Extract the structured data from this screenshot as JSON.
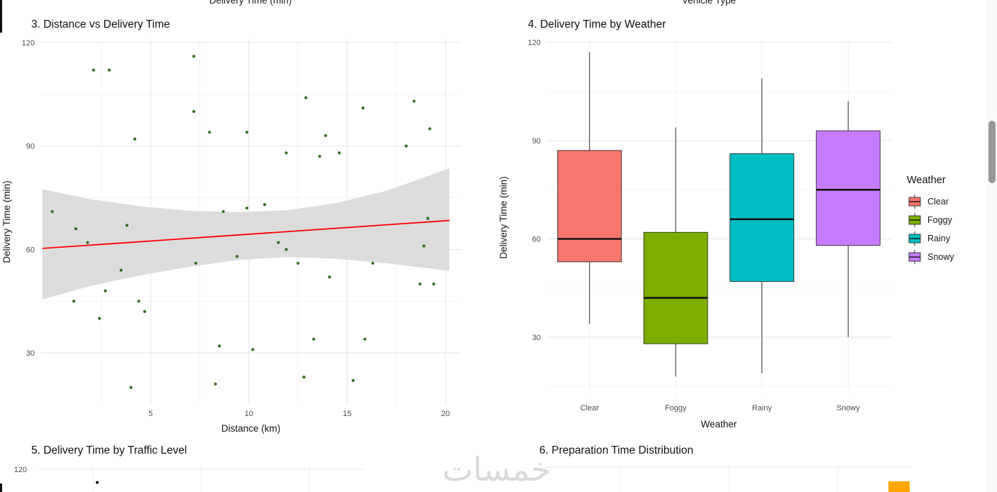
{
  "page": {
    "cutoff_axis_labels": {
      "left": "Delivery Time (min)",
      "right": "Vehicle Type"
    },
    "watermark_text": "خمسات"
  },
  "chart_data": [
    {
      "type": "scatter",
      "title": "3. Distance vs Delivery Time",
      "xlabel": "Distance (km)",
      "ylabel": "Delivery Time (min)",
      "xlim": [
        -0.6,
        20.8
      ],
      "ylim": [
        15,
        121
      ],
      "xticks": [
        5,
        10,
        15,
        20
      ],
      "yticks": [
        30,
        60,
        90,
        120
      ],
      "xticks_minor": [
        2.5,
        7.5,
        12.5,
        17.5
      ],
      "yticks_minor": [
        45,
        75,
        105
      ],
      "grid": true,
      "point_color": "#336b1f",
      "points": [
        [
          0.0,
          71
        ],
        [
          1.1,
          45
        ],
        [
          1.2,
          66
        ],
        [
          1.8,
          62
        ],
        [
          2.1,
          112
        ],
        [
          2.4,
          40
        ],
        [
          2.7,
          48
        ],
        [
          2.9,
          112
        ],
        [
          3.5,
          54
        ],
        [
          3.8,
          67
        ],
        [
          4.0,
          20
        ],
        [
          4.2,
          92
        ],
        [
          4.4,
          45
        ],
        [
          4.7,
          42
        ],
        [
          7.2,
          116
        ],
        [
          7.2,
          100
        ],
        [
          7.3,
          56
        ],
        [
          8.0,
          94
        ],
        [
          8.3,
          21
        ],
        [
          8.5,
          32
        ],
        [
          8.7,
          71
        ],
        [
          9.4,
          58
        ],
        [
          9.9,
          94
        ],
        [
          9.9,
          72
        ],
        [
          10.2,
          31
        ],
        [
          10.8,
          73
        ],
        [
          11.5,
          62
        ],
        [
          11.9,
          88
        ],
        [
          11.9,
          60
        ],
        [
          12.5,
          56
        ],
        [
          12.8,
          23
        ],
        [
          12.9,
          104
        ],
        [
          13.3,
          34
        ],
        [
          13.6,
          87
        ],
        [
          13.9,
          93
        ],
        [
          14.1,
          52
        ],
        [
          14.6,
          88
        ],
        [
          15.3,
          22
        ],
        [
          15.8,
          101
        ],
        [
          15.9,
          34
        ],
        [
          16.3,
          56
        ],
        [
          18.0,
          90
        ],
        [
          18.4,
          103
        ],
        [
          18.7,
          50
        ],
        [
          18.9,
          61
        ],
        [
          19.1,
          69
        ],
        [
          19.2,
          95
        ],
        [
          19.4,
          50
        ]
      ],
      "regression": {
        "color": "#ff0000",
        "x1": -0.5,
        "y1": 60.3,
        "x2": 20.2,
        "y2": 68.4
      },
      "ci_band": {
        "color": "#dcdcdc",
        "opacity": 1,
        "points": [
          [
            -0.5,
            45.5,
            77.5
          ],
          [
            2.0,
            49.5,
            74.5
          ],
          [
            4.5,
            52.5,
            72.5
          ],
          [
            7.0,
            55.0,
            71.2
          ],
          [
            9.5,
            57.0,
            70.8
          ],
          [
            12.0,
            57.8,
            71.4
          ],
          [
            14.5,
            57.3,
            73.5
          ],
          [
            17.0,
            56.0,
            77.0
          ],
          [
            20.2,
            53.8,
            83.5
          ]
        ]
      }
    },
    {
      "type": "boxplot",
      "title": "4. Delivery Time by Weather",
      "xlabel": "Weather",
      "ylabel": "Delivery Time (min)",
      "ylim": [
        12,
        121
      ],
      "yticks": [
        30,
        60,
        90,
        120
      ],
      "yticks_minor": [
        15,
        45,
        75,
        105
      ],
      "grid": true,
      "categories": [
        "Clear",
        "Foggy",
        "Rainy",
        "Snowy"
      ],
      "colors": [
        "#F8766D",
        "#7CAE00",
        "#00BFC4",
        "#C77CFF"
      ],
      "stats": [
        {
          "min": 34,
          "q1": 53,
          "median": 60,
          "q3": 87,
          "max": 117
        },
        {
          "min": 18,
          "q1": 28,
          "median": 42,
          "q3": 62,
          "max": 94
        },
        {
          "min": 19,
          "q1": 47,
          "median": 66,
          "q3": 86,
          "max": 109
        },
        {
          "min": 30,
          "q1": 58,
          "median": 75,
          "q3": 93,
          "max": 102
        }
      ],
      "legend": {
        "title": "Weather",
        "position": "right",
        "entries": [
          "Clear",
          "Foggy",
          "Rainy",
          "Snowy"
        ]
      }
    },
    {
      "type": "boxplot",
      "title": "5. Delivery Time by Traffic Level",
      "partially_visible": true,
      "visible_ytick": "120",
      "outlier": {
        "category_index": 0,
        "value": 116
      }
    },
    {
      "type": "histogram",
      "title": "6. Preparation Time Distribution",
      "partially_visible": true,
      "bar_color": "#FFA500"
    }
  ]
}
